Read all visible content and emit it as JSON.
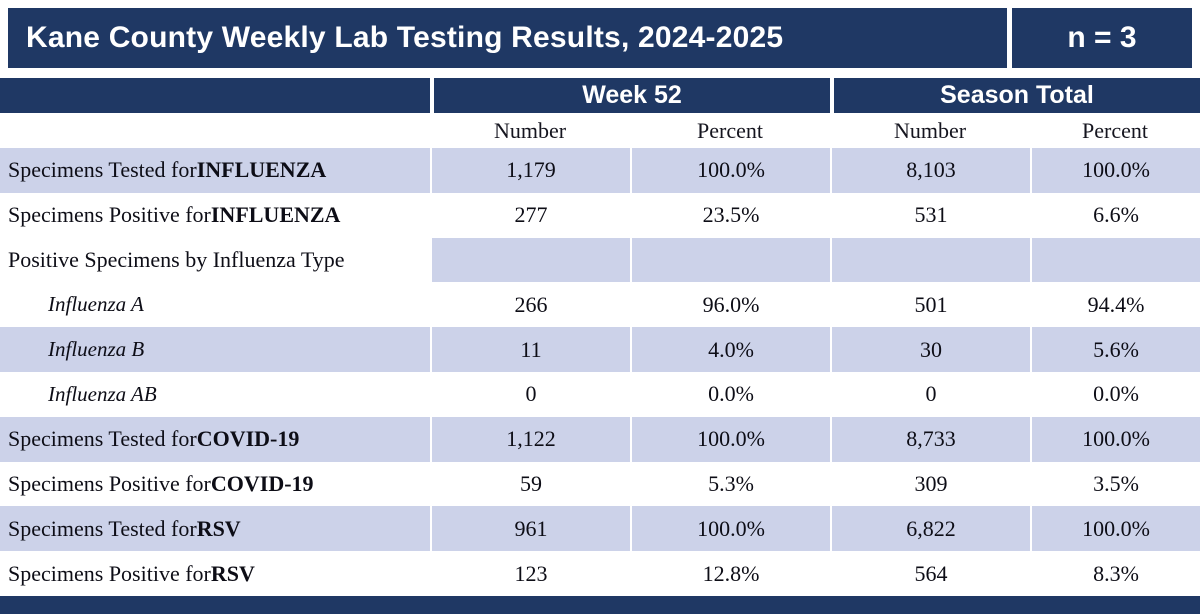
{
  "colors": {
    "navy": "#1F3864",
    "row_shade": "#CCD2E9",
    "header_text": "#FFFFFF",
    "body_text": "#0D0D16"
  },
  "header": {
    "title": "Kane County Weekly Lab Testing Results, 2024-2025",
    "sample_size": "n = 3"
  },
  "table": {
    "group_headers": [
      "Week 52",
      "Season Total"
    ],
    "sub_headers": [
      "Number",
      "Percent",
      "Number",
      "Percent"
    ],
    "rows": [
      {
        "label": "Specimens Tested for ",
        "label_bold": "INFLUENZA",
        "indent_italic": false,
        "shaded": true,
        "label_shaded": true,
        "values": [
          "1,179",
          "100.0%",
          "8,103",
          "100.0%"
        ]
      },
      {
        "label": "Specimens Positive for ",
        "label_bold": "INFLUENZA",
        "indent_italic": false,
        "shaded": false,
        "label_shaded": false,
        "values": [
          "277",
          "23.5%",
          "531",
          "6.6%"
        ]
      },
      {
        "label": "Positive Specimens by Influenza Type",
        "label_bold": "",
        "indent_italic": false,
        "shaded": true,
        "label_shaded": false,
        "values": [
          "",
          "",
          "",
          ""
        ]
      },
      {
        "label": "Influenza A",
        "label_bold": "",
        "indent_italic": true,
        "shaded": false,
        "label_shaded": false,
        "values": [
          "266",
          "96.0%",
          "501",
          "94.4%"
        ]
      },
      {
        "label": "Influenza B",
        "label_bold": "",
        "indent_italic": true,
        "shaded": true,
        "label_shaded": true,
        "values": [
          "11",
          "4.0%",
          "30",
          "5.6%"
        ]
      },
      {
        "label": "Influenza AB",
        "label_bold": "",
        "indent_italic": true,
        "shaded": false,
        "label_shaded": false,
        "values": [
          "0",
          "0.0%",
          "0",
          "0.0%"
        ]
      },
      {
        "label": "Specimens Tested for ",
        "label_bold": "COVID-19",
        "indent_italic": false,
        "shaded": true,
        "label_shaded": true,
        "values": [
          "1,122",
          "100.0%",
          "8,733",
          "100.0%"
        ]
      },
      {
        "label": "Specimens Positive for ",
        "label_bold": "COVID-19",
        "indent_italic": false,
        "shaded": false,
        "label_shaded": false,
        "values": [
          "59",
          "5.3%",
          "309",
          "3.5%"
        ]
      },
      {
        "label": "Specimens Tested for ",
        "label_bold": "RSV",
        "indent_italic": false,
        "shaded": true,
        "label_shaded": true,
        "values": [
          "961",
          "100.0%",
          "6,822",
          "100.0%"
        ]
      },
      {
        "label": "Specimens Positive for ",
        "label_bold": "RSV",
        "indent_italic": false,
        "shaded": false,
        "label_shaded": false,
        "values": [
          "123",
          "12.8%",
          "564",
          "8.3%"
        ]
      }
    ]
  }
}
